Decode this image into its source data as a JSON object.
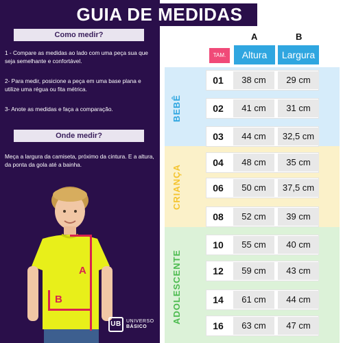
{
  "title": "GUIA DE MEDIDAS",
  "left": {
    "how_heading": "Como medir?",
    "steps": [
      "1 - Compare as medidas ao lado com uma peça sua que seja semelhante e confortável.",
      "2- Para medir, posicione a peça em uma base plana e utilize uma régua ou fita métrica.",
      "3- Anote as medidas e faça a comparação."
    ],
    "where_heading": "Onde medir?",
    "where_text": "Meça a largura da camiseta, próximo da cintura. E a altura, da ponta da gola até a bainha.",
    "label_a": "A",
    "label_b": "B",
    "logo_mark": "UB",
    "logo_line1": "UNIVERSO",
    "logo_line2": "BÁSICO"
  },
  "table": {
    "col_a_letter": "A",
    "col_b_letter": "B",
    "tam_label": "TAM.",
    "altura_label": "Altura",
    "largura_label": "Largura",
    "groups": [
      {
        "name": "BEBÊ",
        "color": "#2fa6e0",
        "bg": "#d6ecfa"
      },
      {
        "name": "CRIANÇA",
        "color": "#f4c430",
        "bg": "#fbf1c9"
      },
      {
        "name": "ADOLESCENTE",
        "color": "#4cbb4f",
        "bg": "#dcf2d8"
      }
    ],
    "rows": [
      {
        "size": "01",
        "altura": "38 cm",
        "largura": "29 cm"
      },
      {
        "size": "02",
        "altura": "41 cm",
        "largura": "31 cm"
      },
      {
        "size": "03",
        "altura": "44 cm",
        "largura": "32,5 cm"
      },
      {
        "size": "04",
        "altura": "48 cm",
        "largura": "35 cm"
      },
      {
        "size": "06",
        "altura": "50 cm",
        "largura": "37,5 cm"
      },
      {
        "size": "08",
        "altura": "52 cm",
        "largura": "39 cm"
      },
      {
        "size": "10",
        "altura": "55 cm",
        "largura": "40 cm"
      },
      {
        "size": "12",
        "altura": "59 cm",
        "largura": "43 cm"
      },
      {
        "size": "14",
        "altura": "61 cm",
        "largura": "44 cm"
      },
      {
        "size": "16",
        "altura": "63 cm",
        "largura": "47 cm"
      }
    ]
  },
  "colors": {
    "panel": "#2a0f4a",
    "accent_pink": "#f04a78",
    "accent_blue": "#2fa6e0",
    "measure_red": "#d9224f",
    "shirt_yellow": "#e8ef1a"
  }
}
